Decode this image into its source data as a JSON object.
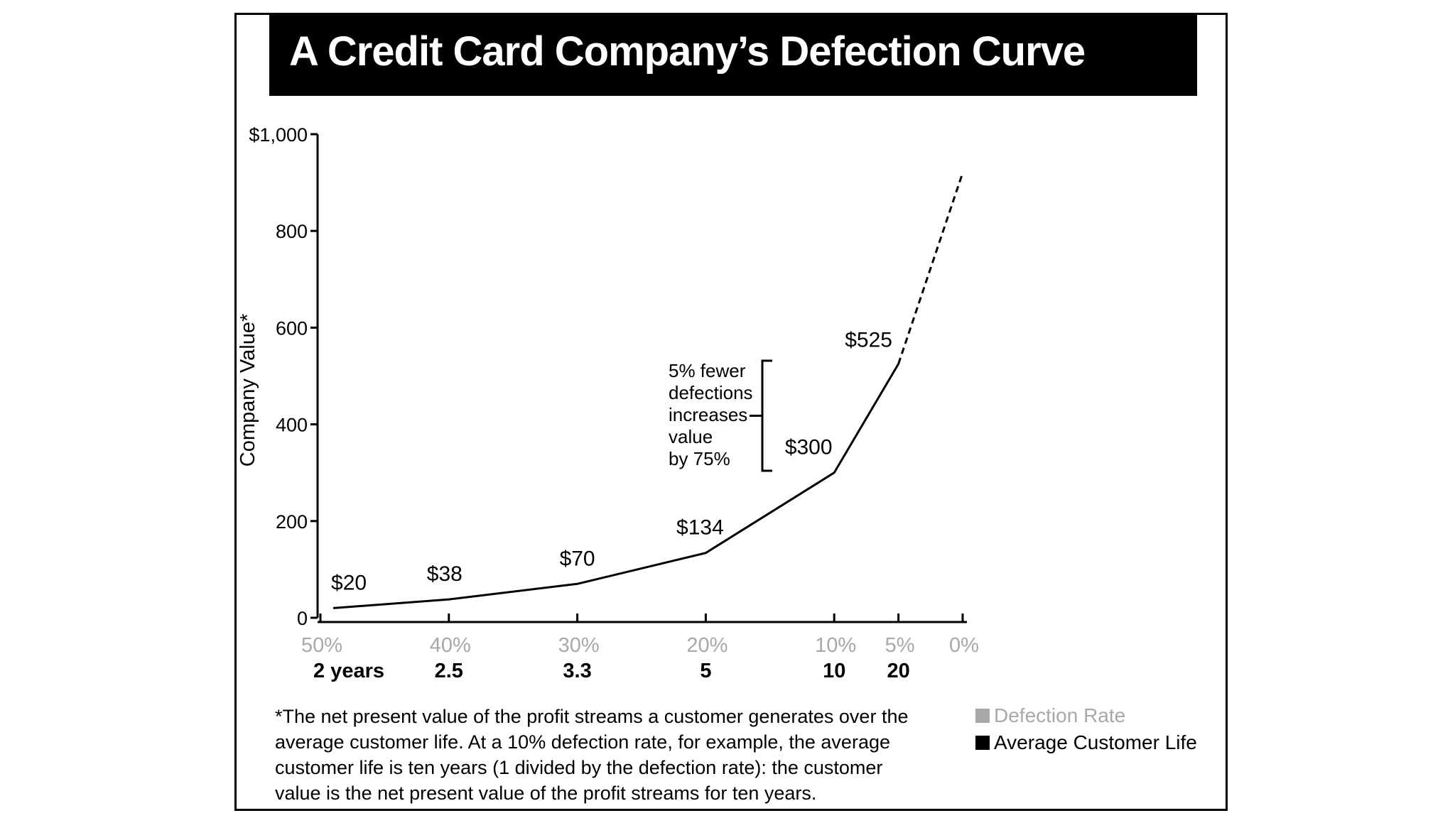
{
  "chart_data": {
    "type": "line",
    "title": "A Credit Card Company’s Defection Curve",
    "ylabel": "Company Value*",
    "ylim": [
      0,
      1000
    ],
    "y_ticks": [
      "$1,000",
      "800",
      "600",
      "400",
      "200",
      "0"
    ],
    "x_axis": "defection rate (%)",
    "xlim": [
      50,
      0
    ],
    "x_reversed": true,
    "defection_rate_ticks": [
      {
        "rate": 50,
        "label": "50%",
        "life": "2 years"
      },
      {
        "rate": 40,
        "label": "40%",
        "life": "2.5"
      },
      {
        "rate": 30,
        "label": "30%",
        "life": "3.3"
      },
      {
        "rate": 20,
        "label": "20%",
        "life": "5"
      },
      {
        "rate": 10,
        "label": "10%",
        "life": "10"
      },
      {
        "rate": 5,
        "label": "5%",
        "life": "20"
      },
      {
        "rate": 0,
        "label": "0%",
        "life": ""
      }
    ],
    "series": [
      {
        "style": "solid",
        "points": [
          {
            "rate": 49,
            "value": 20,
            "label": "$20"
          },
          {
            "rate": 40,
            "value": 38,
            "label": "$38"
          },
          {
            "rate": 30,
            "value": 70,
            "label": "$70"
          },
          {
            "rate": 20,
            "value": 134,
            "label": "$134"
          },
          {
            "rate": 10,
            "value": 300,
            "label": "$300"
          },
          {
            "rate": 5,
            "value": 525,
            "label": "$525"
          }
        ]
      },
      {
        "style": "dashed",
        "points": [
          {
            "rate": 5,
            "value": 525
          },
          {
            "rate": 0,
            "value": 920
          }
        ]
      }
    ],
    "annotation": {
      "lines": [
        "5% fewer",
        "defections",
        "increases",
        "value",
        "by 75%"
      ]
    },
    "legend": [
      {
        "label": "Defection Rate",
        "color": "#a8a8a8"
      },
      {
        "label": "Average Customer Life",
        "color": "#000000"
      }
    ]
  },
  "footnote": [
    "*The net present value of the profit streams a customer generates over the",
    "average customer life. At a 10% defection rate, for example, the average",
    "customer life is ten years (1 divided by the defection rate): the customer",
    "value is the net present value of the profit streams for ten years."
  ]
}
